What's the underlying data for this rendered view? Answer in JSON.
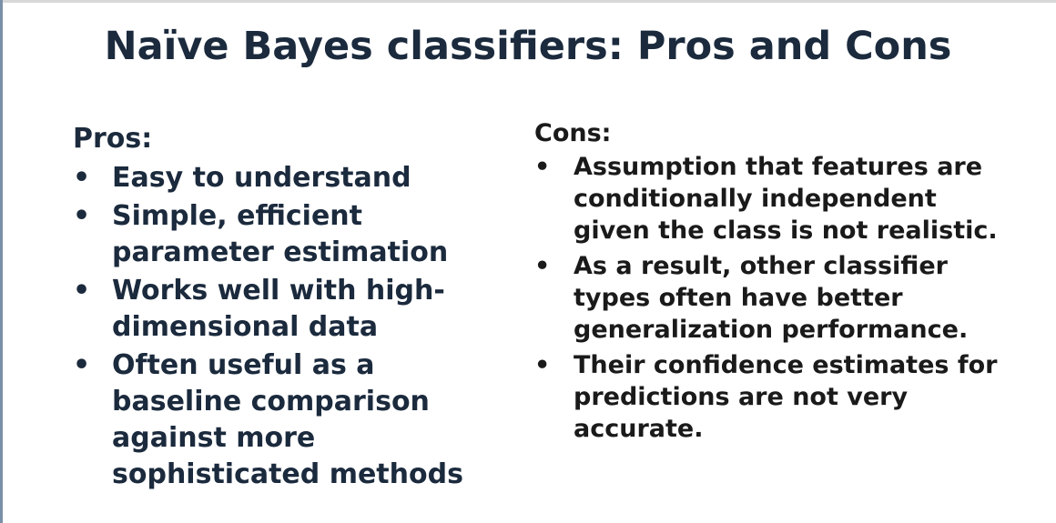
{
  "slide": {
    "title": "Naïve Bayes classifiers: Pros and Cons",
    "bullet_glyph": "•",
    "pros": {
      "heading": "Pros:",
      "items": [
        "Easy to understand",
        "Simple, efficient parameter estimation",
        "Works well with high-dimensional data",
        "Often useful as a baseline comparison against more sophisticated methods"
      ]
    },
    "cons": {
      "heading": "Cons:",
      "items": [
        "Assumption that features are conditionally independent given the class is not realistic.",
        "As a result, other classifier types often have better generalization performance.",
        "Their confidence estimates for predictions are not very accurate."
      ]
    },
    "colors": {
      "title": "#1b2a3d",
      "text": "#1a1a1a",
      "background": "#ffffff"
    }
  }
}
